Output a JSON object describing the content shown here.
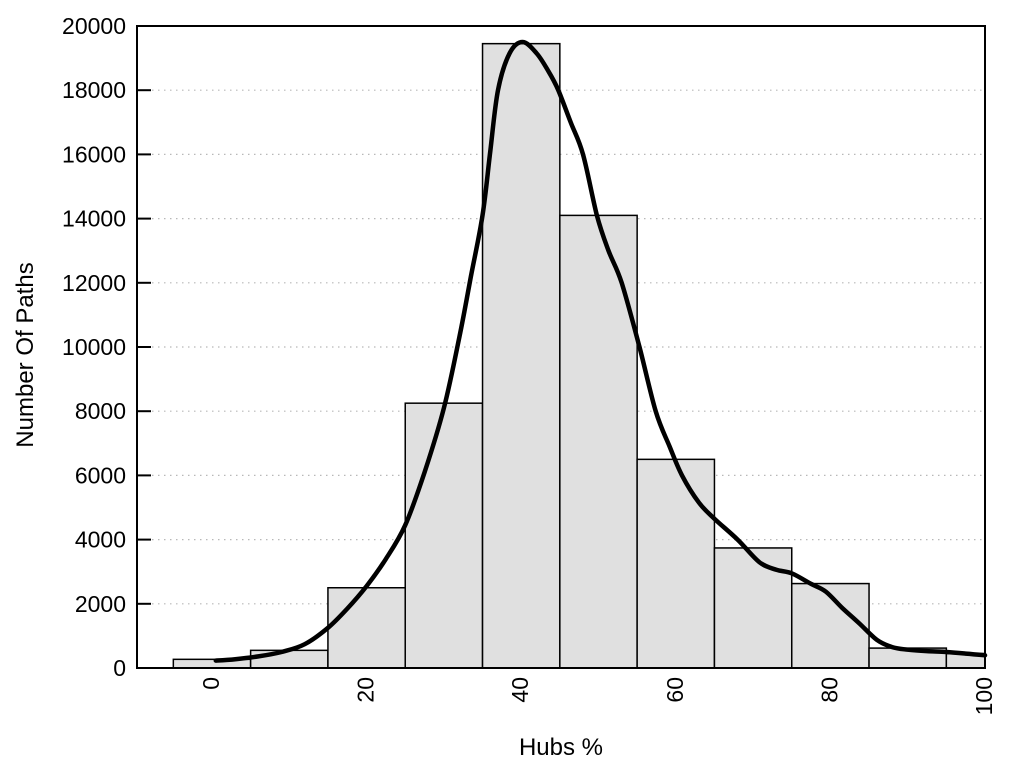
{
  "page": {
    "background": "#ffffff"
  },
  "chart_data": {
    "type": "bar",
    "subtype": "histogram_with_density_curve",
    "title": "",
    "xlabel": "Hubs %",
    "ylabel": "Number Of Paths",
    "xlim": [
      -9.7,
      100
    ],
    "ylim": [
      0,
      20000
    ],
    "x_ticks": [
      0,
      20,
      40,
      60,
      80,
      100
    ],
    "y_ticks": [
      0,
      2000,
      4000,
      6000,
      8000,
      10000,
      12000,
      14000,
      16000,
      18000,
      20000
    ],
    "x_tick_label_rotation": -90,
    "grid": {
      "horizontal": true,
      "vertical": false,
      "style": "dotted",
      "color": "#b8b8b8"
    },
    "frame_color": "#000000",
    "histogram": {
      "bin_width": 10,
      "bin_centers": [
        0,
        10,
        20,
        30,
        40,
        50,
        60,
        70,
        80,
        90,
        100
      ],
      "counts": [
        270,
        550,
        2500,
        8250,
        19450,
        14100,
        6500,
        3740,
        2630,
        620,
        450
      ],
      "last_bin_clipped_at": 100,
      "fill": "#e0e0e0",
      "stroke": "#000000",
      "stroke_width": 1.5
    },
    "density_curve": {
      "color": "#000000",
      "stroke_width": 4.5,
      "points": [
        [
          0.5,
          230
        ],
        [
          3,
          275
        ],
        [
          6,
          360
        ],
        [
          9,
          500
        ],
        [
          12,
          740
        ],
        [
          15,
          1250
        ],
        [
          17.5,
          1850
        ],
        [
          20,
          2550
        ],
        [
          22.5,
          3400
        ],
        [
          25,
          4450
        ],
        [
          27.5,
          6100
        ],
        [
          30,
          8100
        ],
        [
          32,
          10300
        ],
        [
          33.5,
          12200
        ],
        [
          35,
          14100
        ],
        [
          36,
          16100
        ],
        [
          37,
          18000
        ],
        [
          38.5,
          19150
        ],
        [
          40.2,
          19500
        ],
        [
          42,
          19150
        ],
        [
          43.5,
          18600
        ],
        [
          44.8,
          18000
        ],
        [
          46.4,
          17000
        ],
        [
          48,
          16000
        ],
        [
          49.8,
          14100
        ],
        [
          51.3,
          13000
        ],
        [
          53,
          12000
        ],
        [
          55.3,
          10000
        ],
        [
          57.4,
          8000
        ],
        [
          59.2,
          6900
        ],
        [
          60.8,
          6000
        ],
        [
          63,
          5150
        ],
        [
          65,
          4650
        ],
        [
          68,
          4000
        ],
        [
          70.8,
          3300
        ],
        [
          73,
          3060
        ],
        [
          75,
          2950
        ],
        [
          77.5,
          2620
        ],
        [
          79.4,
          2380
        ],
        [
          81.5,
          1880
        ],
        [
          83.7,
          1400
        ],
        [
          86,
          880
        ],
        [
          88,
          650
        ],
        [
          90,
          570
        ],
        [
          92.5,
          525
        ],
        [
          95,
          500
        ],
        [
          97.5,
          450
        ],
        [
          100,
          395
        ]
      ]
    }
  }
}
